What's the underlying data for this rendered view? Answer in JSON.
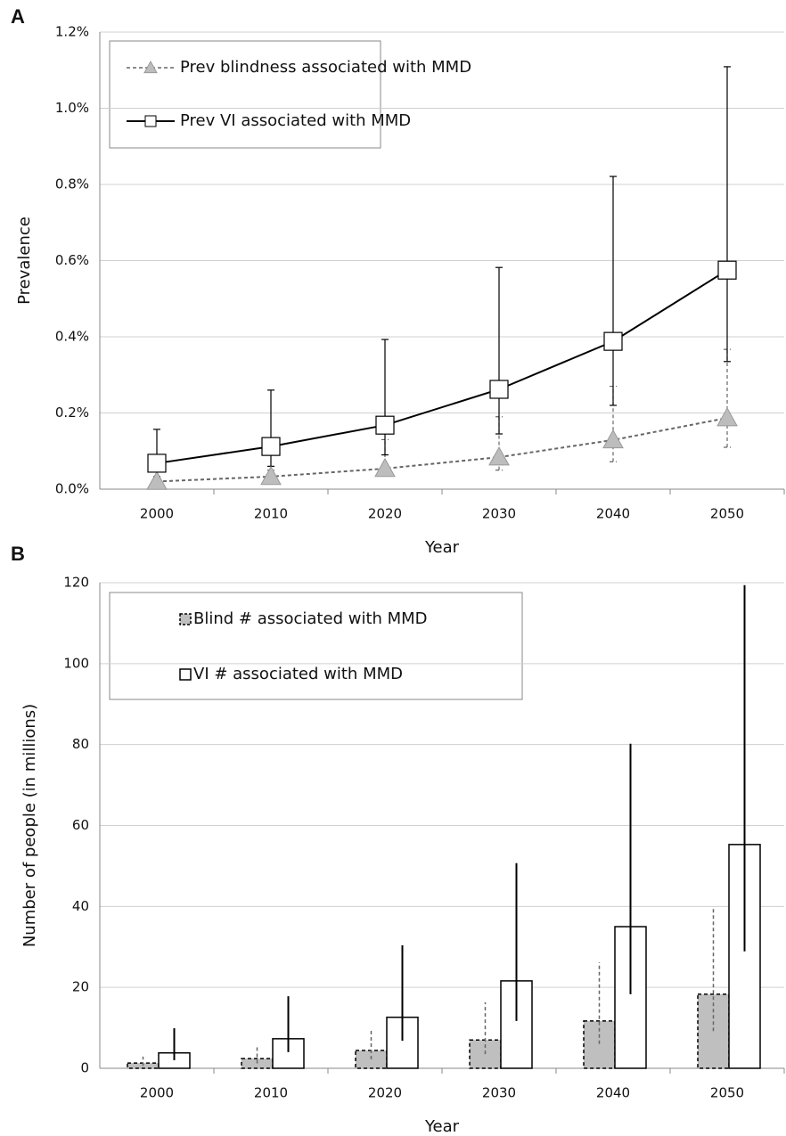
{
  "chart_data": [
    {
      "type": "line",
      "panel_label": "A",
      "ylabel": "Prevalence",
      "xlabel": "Year",
      "categories": [
        "2000",
        "2010",
        "2020",
        "2030",
        "2040",
        "2050"
      ],
      "ylim": [
        0,
        1.2
      ],
      "yticks": [
        {
          "value": 0,
          "label": "0.0%"
        },
        {
          "value": 0.2,
          "label": "0.2%"
        },
        {
          "value": 0.4,
          "label": "0.4%"
        },
        {
          "value": 0.6,
          "label": "0.6%"
        },
        {
          "value": 0.8,
          "label": "0.8%"
        },
        {
          "value": 1.0,
          "label": "1.0%"
        },
        {
          "value": 1.2,
          "label": "1.2%"
        }
      ],
      "grid": true,
      "series": [
        {
          "name": "Prev blindness associated with MMD",
          "color": "#666666",
          "fill": "#bdbdbd",
          "marker": "triangle",
          "dashed": true,
          "values": [
            0.02,
            0.033,
            0.054,
            0.084,
            0.129,
            0.187
          ],
          "lower": [
            0.01,
            0.02,
            0.035,
            0.05,
            0.072,
            0.11
          ],
          "upper": [
            0.03,
            0.05,
            0.13,
            0.19,
            0.27,
            0.367
          ]
        },
        {
          "name": "Prev VI associated with MMD",
          "color": "#000000",
          "fill": "#ffffff",
          "marker": "square",
          "dashed": false,
          "values": [
            0.068,
            0.112,
            0.168,
            0.262,
            0.388,
            0.575
          ],
          "lower": [
            0.033,
            0.06,
            0.09,
            0.145,
            0.22,
            0.335
          ],
          "upper": [
            0.157,
            0.26,
            0.393,
            0.582,
            0.821,
            1.109
          ]
        }
      ]
    },
    {
      "type": "bar",
      "panel_label": "B",
      "ylabel": "Number of people (in millions)",
      "xlabel": "Year",
      "categories": [
        "2000",
        "2010",
        "2020",
        "2030",
        "2040",
        "2050"
      ],
      "ylim": [
        0,
        120
      ],
      "yticks": [
        0,
        20,
        40,
        60,
        80,
        100,
        120
      ],
      "grid": true,
      "series": [
        {
          "name": "Blind # associated with MMD",
          "color": "#000000",
          "fill": "#bfbfbf",
          "dashed": true,
          "values": [
            1.3,
            2.4,
            4.4,
            7.0,
            11.7,
            18.3
          ],
          "lower": [
            0.6,
            1.2,
            2.2,
            3.5,
            6.0,
            9.2
          ],
          "upper": [
            2.9,
            5.7,
            9.5,
            16.3,
            26.2,
            39.4
          ]
        },
        {
          "name": "VI # associated with MMD",
          "color": "#000000",
          "fill": "#ffffff",
          "dashed": false,
          "values": [
            3.8,
            7.3,
            12.6,
            21.6,
            35.0,
            55.3
          ],
          "lower": [
            2.0,
            4.0,
            6.8,
            11.7,
            18.3,
            28.9
          ],
          "upper": [
            9.9,
            17.8,
            30.4,
            50.7,
            80.2,
            119.4
          ]
        }
      ]
    }
  ]
}
